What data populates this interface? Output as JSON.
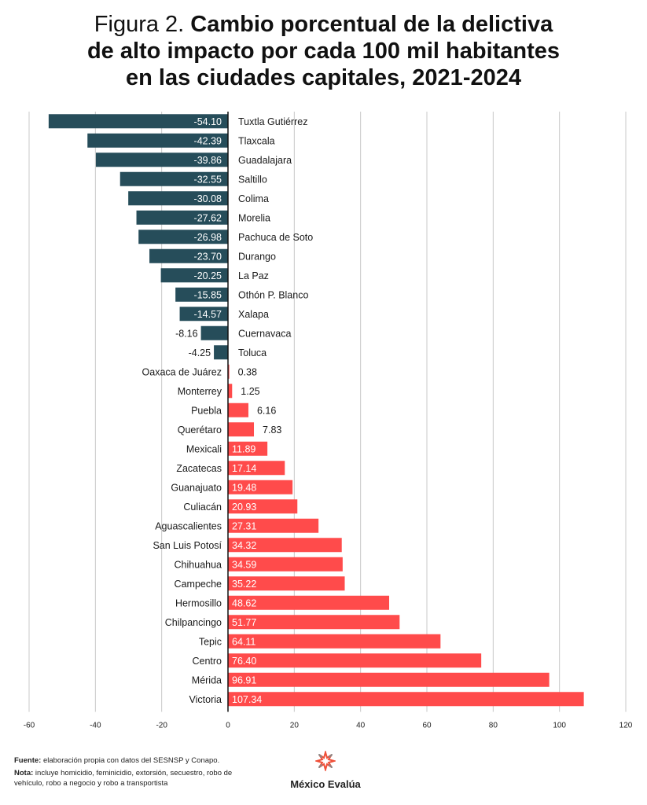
{
  "title": {
    "prefix": "Figura 2.",
    "line1": "Cambio porcentual de la delictiva",
    "line2": "de alto impacto por cada 100 mil habitantes",
    "line3": "en las ciudades capitales, 2021-2024"
  },
  "colors": {
    "negative": "#264d5a",
    "positive": "#ff4b4b",
    "grid": "#c8c8c8",
    "axis": "#111111"
  },
  "chart_data": {
    "type": "bar",
    "orientation": "horizontal",
    "title": "Figura 2. Cambio porcentual de la delictiva de alto impacto por cada 100 mil habitantes en las ciudades capitales, 2021-2024",
    "xlabel": "",
    "ylabel": "",
    "xlim": [
      -60,
      120
    ],
    "xticks": [
      -60,
      -40,
      -20,
      0,
      20,
      40,
      60,
      80,
      100,
      120
    ],
    "grid": true,
    "categories": [
      "Tuxtla Gutiérrez",
      "Tlaxcala",
      "Guadalajara",
      "Saltillo",
      "Colima",
      "Morelia",
      "Pachuca de Soto",
      "Durango",
      "La Paz",
      "Othón P. Blanco",
      "Xalapa",
      "Cuernavaca",
      "Toluca",
      "Oaxaca de Juárez",
      "Monterrey",
      "Puebla",
      "Querétaro",
      "Mexicali",
      "Zacatecas",
      "Guanajuato",
      "Culiacán",
      "Aguascalientes",
      "San Luis Potosí",
      "Chihuahua",
      "Campeche",
      "Hermosillo",
      "Chilpancingo",
      "Tepic",
      "Centro",
      "Mérida",
      "Victoria"
    ],
    "values": [
      -54.1,
      -42.39,
      -39.86,
      -32.55,
      -30.08,
      -27.62,
      -26.98,
      -23.7,
      -20.25,
      -15.85,
      -14.57,
      -8.16,
      -4.25,
      0.38,
      1.25,
      6.16,
      7.83,
      11.89,
      17.14,
      19.48,
      20.93,
      27.31,
      34.32,
      34.59,
      35.22,
      48.62,
      51.77,
      64.11,
      76.4,
      96.91,
      107.34
    ],
    "labels": [
      "-54.10",
      "-42.39",
      "-39.86",
      "-32.55",
      "-30.08",
      "-27.62",
      "-26.98",
      "-23.70",
      "-20.25",
      "-15.85",
      "-14.57",
      "-8.16",
      "-4.25",
      "0.38",
      "1.25",
      "6.16",
      "7.83",
      "11.89",
      "17.14",
      "19.48",
      "20.93",
      "27.31",
      "34.32",
      "34.59",
      "35.22",
      "48.62",
      "51.77",
      "64.11",
      "76.40",
      "96.91",
      "107.34"
    ]
  },
  "footer": {
    "source_label": "Fuente:",
    "source_text": " elaboración propia con datos del SESNSP y Conapo.",
    "note_label": "Nota:",
    "note_text": " incluye homicidio, feminicidio, extorsión, secuestro, robo de vehículo, robo a negocio y robo a transportista"
  },
  "logo": {
    "text": "México Evalúa",
    "icon": "star-burst-icon"
  }
}
